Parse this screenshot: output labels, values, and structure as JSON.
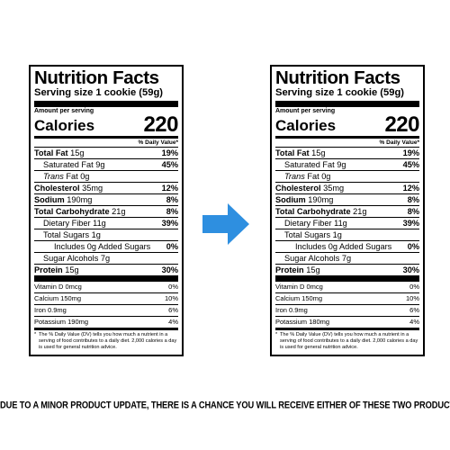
{
  "panels": [
    {
      "title": "Nutrition Facts",
      "serving": "Serving size 1 cookie (59g)",
      "amount_per_serving": "Amount per serving",
      "calories_label": "Calories",
      "calories_value": "220",
      "dv_header": "% Daily Value*",
      "total_fat": {
        "label": "Total Fat",
        "amount": "15g",
        "dv": "19%"
      },
      "saturated_fat": {
        "label": "Saturated Fat 9g",
        "dv": "45%"
      },
      "trans_fat": {
        "label_italic": "Trans",
        "label_rest": "Fat 0g"
      },
      "cholesterol": {
        "label": "Cholesterol",
        "amount": "35mg",
        "dv": "12%"
      },
      "sodium": {
        "label": "Sodium",
        "amount": "190mg",
        "dv": "8%"
      },
      "total_carb": {
        "label": "Total Carbohydrate",
        "amount": "21g",
        "dv": "8%"
      },
      "dietary_fiber": {
        "label": "Dietary Fiber 11g",
        "dv": "39%"
      },
      "total_sugars": {
        "label": "Total Sugars 1g"
      },
      "added_sugars": {
        "label": "Includes 0g Added Sugars",
        "dv": "0%"
      },
      "sugar_alcohols": {
        "label": "Sugar Alcohols 7g"
      },
      "protein": {
        "label": "Protein",
        "amount": "15g",
        "dv": "30%"
      },
      "vitamin_d": {
        "label": "Vitamin D 0mcg",
        "dv": "0%"
      },
      "calcium": {
        "label": "Calcium 150mg",
        "dv": "10%"
      },
      "iron": {
        "label": "Iron 0.9mg",
        "dv": "6%"
      },
      "potassium": {
        "label": "Potassium 190mg",
        "dv": "4%"
      },
      "footnote_star": "*",
      "footnote": "The % Daily Value (DV) tells you how much a nutrient in a serving of food contributes to a daily diet. 2,000 calories a day is used for general nutrition advice."
    },
    {
      "title": "Nutrition Facts",
      "serving": "Serving size 1 cookie (59g)",
      "amount_per_serving": "Amount per serving",
      "calories_label": "Calories",
      "calories_value": "220",
      "dv_header": "% Daily Value*",
      "total_fat": {
        "label": "Total Fat",
        "amount": "15g",
        "dv": "19%"
      },
      "saturated_fat": {
        "label": "Saturated Fat 9g",
        "dv": "45%"
      },
      "trans_fat": {
        "label_italic": "Trans",
        "label_rest": "Fat 0g"
      },
      "cholesterol": {
        "label": "Cholesterol",
        "amount": "35mg",
        "dv": "12%"
      },
      "sodium": {
        "label": "Sodium",
        "amount": "190mg",
        "dv": "8%"
      },
      "total_carb": {
        "label": "Total Carbohydrate",
        "amount": "21g",
        "dv": "8%"
      },
      "dietary_fiber": {
        "label": "Dietary Fiber 11g",
        "dv": "39%"
      },
      "total_sugars": {
        "label": "Total Sugars 1g"
      },
      "added_sugars": {
        "label": "Includes 0g Added Sugars",
        "dv": "0%"
      },
      "sugar_alcohols": {
        "label": "Sugar Alcohols 7g"
      },
      "protein": {
        "label": "Protein",
        "amount": "15g",
        "dv": "30%"
      },
      "vitamin_d": {
        "label": "Vitamin D 0mcg",
        "dv": "0%"
      },
      "calcium": {
        "label": "Calcium 150mg",
        "dv": "10%"
      },
      "iron": {
        "label": "Iron 0.9mg",
        "dv": "6%"
      },
      "potassium": {
        "label": "Potassium 180mg",
        "dv": "4%"
      },
      "footnote_star": "*",
      "footnote": "The % Daily Value (DV) tells you how much a nutrient in a serving of food contributes to a daily diet. 2,000 calories a day is used for general nutrition advice."
    }
  ],
  "arrow": {
    "icon": "arrow-right-icon",
    "color": "#2e8fe0"
  },
  "caption": "DUE TO A MINOR PRODUCT UPDATE, THERE IS A CHANCE YOU WILL RECEIVE EITHER OF THESE TWO PRODUCTS"
}
